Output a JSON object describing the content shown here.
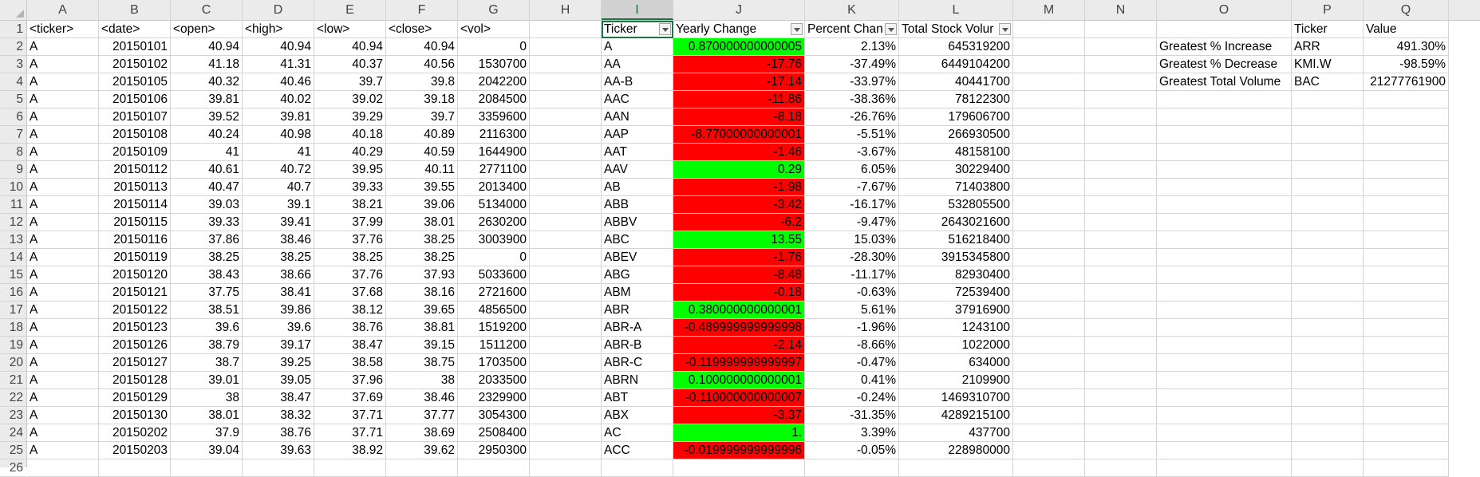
{
  "columns": [
    "A",
    "B",
    "C",
    "D",
    "E",
    "F",
    "G",
    "H",
    "I",
    "J",
    "K",
    "L",
    "M",
    "N",
    "O",
    "P",
    "Q"
  ],
  "selected_column": "I",
  "rows": [
    "1",
    "2",
    "3",
    "4",
    "5",
    "6",
    "7",
    "8",
    "9",
    "10",
    "11",
    "12",
    "13",
    "14",
    "15",
    "16",
    "17",
    "18",
    "19",
    "20",
    "21",
    "22",
    "23",
    "24",
    "25",
    "26"
  ],
  "header_row": {
    "A": "<ticker>",
    "B": "<date>",
    "C": "<open>",
    "D": "<high>",
    "E": "<low>",
    "F": "<close>",
    "G": "<vol>",
    "I": "Ticker",
    "J": "Yearly Change",
    "K": "Percent Chan",
    "L": "Total Stock Volur",
    "P": "Ticker",
    "Q": "Value"
  },
  "filter_columns": [
    "I",
    "J",
    "K",
    "L"
  ],
  "raw_data": [
    [
      "A",
      "20150101",
      "40.94",
      "40.94",
      "40.94",
      "40.94",
      "0"
    ],
    [
      "A",
      "20150102",
      "41.18",
      "41.31",
      "40.37",
      "40.56",
      "1530700"
    ],
    [
      "A",
      "20150105",
      "40.32",
      "40.46",
      "39.7",
      "39.8",
      "2042200"
    ],
    [
      "A",
      "20150106",
      "39.81",
      "40.02",
      "39.02",
      "39.18",
      "2084500"
    ],
    [
      "A",
      "20150107",
      "39.52",
      "39.81",
      "39.29",
      "39.7",
      "3359600"
    ],
    [
      "A",
      "20150108",
      "40.24",
      "40.98",
      "40.18",
      "40.89",
      "2116300"
    ],
    [
      "A",
      "20150109",
      "41",
      "41",
      "40.29",
      "40.59",
      "1644900"
    ],
    [
      "A",
      "20150112",
      "40.61",
      "40.72",
      "39.95",
      "40.11",
      "2771100"
    ],
    [
      "A",
      "20150113",
      "40.47",
      "40.7",
      "39.33",
      "39.55",
      "2013400"
    ],
    [
      "A",
      "20150114",
      "39.03",
      "39.1",
      "38.21",
      "39.06",
      "5134000"
    ],
    [
      "A",
      "20150115",
      "39.33",
      "39.41",
      "37.99",
      "38.01",
      "2630200"
    ],
    [
      "A",
      "20150116",
      "37.86",
      "38.46",
      "37.76",
      "38.25",
      "3003900"
    ],
    [
      "A",
      "20150119",
      "38.25",
      "38.25",
      "38.25",
      "38.25",
      "0"
    ],
    [
      "A",
      "20150120",
      "38.43",
      "38.66",
      "37.76",
      "37.93",
      "5033600"
    ],
    [
      "A",
      "20150121",
      "37.75",
      "38.41",
      "37.68",
      "38.16",
      "2721600"
    ],
    [
      "A",
      "20150122",
      "38.51",
      "39.86",
      "38.12",
      "39.65",
      "4856500"
    ],
    [
      "A",
      "20150123",
      "39.6",
      "39.6",
      "38.76",
      "38.81",
      "1519200"
    ],
    [
      "A",
      "20150126",
      "38.79",
      "39.17",
      "38.47",
      "39.15",
      "1511200"
    ],
    [
      "A",
      "20150127",
      "38.7",
      "39.25",
      "38.58",
      "38.75",
      "1703500"
    ],
    [
      "A",
      "20150128",
      "39.01",
      "39.05",
      "37.96",
      "38",
      "2033500"
    ],
    [
      "A",
      "20150129",
      "38",
      "38.47",
      "37.69",
      "38.46",
      "2329900"
    ],
    [
      "A",
      "20150130",
      "38.01",
      "38.32",
      "37.71",
      "37.77",
      "3054300"
    ],
    [
      "A",
      "20150202",
      "37.9",
      "38.76",
      "37.71",
      "38.69",
      "2508400"
    ],
    [
      "A",
      "20150203",
      "39.04",
      "39.63",
      "38.92",
      "39.62",
      "2950300"
    ]
  ],
  "summary": [
    {
      "ticker": "A",
      "change": "0.870000000000005",
      "pct": "2.13%",
      "vol": "645319200",
      "status": "green"
    },
    {
      "ticker": "AA",
      "change": "-17.76",
      "pct": "-37.49%",
      "vol": "6449104200",
      "status": "red"
    },
    {
      "ticker": "AA-B",
      "change": "-17.14",
      "pct": "-33.97%",
      "vol": "40441700",
      "status": "red"
    },
    {
      "ticker": "AAC",
      "change": "-11.86",
      "pct": "-38.36%",
      "vol": "78122300",
      "status": "red"
    },
    {
      "ticker": "AAN",
      "change": "-8.18",
      "pct": "-26.76%",
      "vol": "179606700",
      "status": "red"
    },
    {
      "ticker": "AAP",
      "change": "-8.77000000000001",
      "pct": "-5.51%",
      "vol": "266930500",
      "status": "red"
    },
    {
      "ticker": "AAT",
      "change": "-1.46",
      "pct": "-3.67%",
      "vol": "48158100",
      "status": "red"
    },
    {
      "ticker": "AAV",
      "change": "0.29",
      "pct": "6.05%",
      "vol": "30229400",
      "status": "green"
    },
    {
      "ticker": "AB",
      "change": "-1.98",
      "pct": "-7.67%",
      "vol": "71403800",
      "status": "red"
    },
    {
      "ticker": "ABB",
      "change": "-3.42",
      "pct": "-16.17%",
      "vol": "532805500",
      "status": "red"
    },
    {
      "ticker": "ABBV",
      "change": "-6.2",
      "pct": "-9.47%",
      "vol": "2643021600",
      "status": "red"
    },
    {
      "ticker": "ABC",
      "change": "13.55",
      "pct": "15.03%",
      "vol": "516218400",
      "status": "green"
    },
    {
      "ticker": "ABEV",
      "change": "-1.76",
      "pct": "-28.30%",
      "vol": "3915345800",
      "status": "red"
    },
    {
      "ticker": "ABG",
      "change": "-8.48",
      "pct": "-11.17%",
      "vol": "82930400",
      "status": "red"
    },
    {
      "ticker": "ABM",
      "change": "-0.18",
      "pct": "-0.63%",
      "vol": "72539400",
      "status": "red"
    },
    {
      "ticker": "ABR",
      "change": "0.380000000000001",
      "pct": "5.61%",
      "vol": "37916900",
      "status": "green"
    },
    {
      "ticker": "ABR-A",
      "change": "-0.489999999999998",
      "pct": "-1.96%",
      "vol": "1243100",
      "status": "red"
    },
    {
      "ticker": "ABR-B",
      "change": "-2.14",
      "pct": "-8.66%",
      "vol": "1022000",
      "status": "red"
    },
    {
      "ticker": "ABR-C",
      "change": "-0.119999999999997",
      "pct": "-0.47%",
      "vol": "634000",
      "status": "red"
    },
    {
      "ticker": "ABRN",
      "change": "0.100000000000001",
      "pct": "0.41%",
      "vol": "2109900",
      "status": "green"
    },
    {
      "ticker": "ABT",
      "change": "-0.110000000000007",
      "pct": "-0.24%",
      "vol": "1469310700",
      "status": "red"
    },
    {
      "ticker": "ABX",
      "change": "-3.37",
      "pct": "-31.35%",
      "vol": "4289215100",
      "status": "red"
    },
    {
      "ticker": "AC",
      "change": "1.",
      "pct": "3.39%",
      "vol": "437700",
      "status": "green"
    },
    {
      "ticker": "ACC",
      "change": "-0.019999999999996",
      "pct": "-0.05%",
      "vol": "228980000",
      "status": "red"
    }
  ],
  "greatest": [
    {
      "label": "Greatest % Increase",
      "ticker": "ARR",
      "value": "491.30%"
    },
    {
      "label": "Greatest % Decrease",
      "ticker": "KMI.W",
      "value": "-98.59%"
    },
    {
      "label": "Greatest Total Volume",
      "ticker": "BAC",
      "value": "21277761900"
    }
  ],
  "colors": {
    "positive": "#00ff00",
    "negative": "#ff0000",
    "selection": "#217346",
    "header_bg": "#ebebeb"
  }
}
